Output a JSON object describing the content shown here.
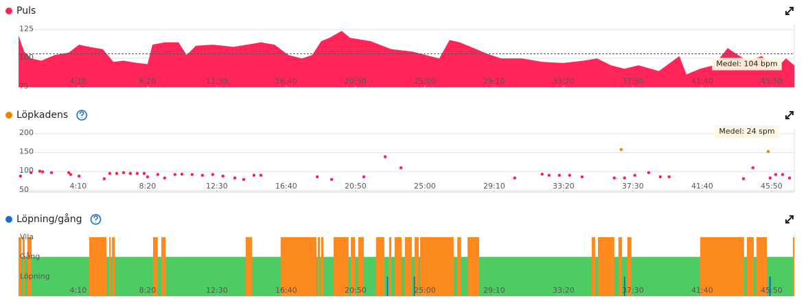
{
  "chart_data": [
    {
      "type": "area",
      "title": "Puls",
      "color": "#ff2558",
      "xlim": [
        35,
        2832
      ],
      "xticks": [
        {
          "value": 250,
          "label": "4:10"
        },
        {
          "value": 500,
          "label": "8:20"
        },
        {
          "value": 750,
          "label": "12:30"
        },
        {
          "value": 1000,
          "label": "16:40"
        },
        {
          "value": 1250,
          "label": "20:50"
        },
        {
          "value": 1500,
          "label": "25:00"
        },
        {
          "value": 1750,
          "label": "29:10"
        },
        {
          "value": 2000,
          "label": "33:20"
        },
        {
          "value": 2250,
          "label": "37:30"
        },
        {
          "value": 2500,
          "label": "41:40"
        },
        {
          "value": 2750,
          "label": "45:50"
        }
      ],
      "ylim": [
        75,
        127
      ],
      "yticks": [
        75,
        100,
        125
      ],
      "grid": true,
      "x": [
        35,
        55,
        80,
        117,
        166,
        216,
        253,
        290,
        339,
        377,
        414,
        463,
        500,
        518,
        562,
        612,
        641,
        674,
        735,
        810,
        859,
        909,
        958,
        1008,
        1057,
        1094,
        1126,
        1156,
        1200,
        1230,
        1305,
        1379,
        1453,
        1503,
        1552,
        1589,
        1626,
        1676,
        1725,
        1775,
        1849,
        1923,
        1998,
        2072,
        2121,
        2171,
        2220,
        2270,
        2344,
        2418,
        2443,
        2493,
        2542,
        2592,
        2629,
        2666,
        2715,
        2765,
        2802,
        2832
      ],
      "series": [
        {
          "color": "#ff2558",
          "values": [
            120,
            106,
            100,
            98,
            103,
            105,
            112,
            110,
            108,
            97,
            98,
            96,
            95,
            112,
            114,
            114,
            103,
            111,
            112,
            110,
            112,
            114,
            112,
            103,
            100,
            103,
            115,
            118,
            124,
            118,
            115,
            108,
            106,
            103,
            100,
            116,
            114,
            109,
            104,
            100,
            100,
            97,
            96,
            98,
            100,
            94,
            91,
            94,
            89,
            102,
            86,
            91,
            94,
            109,
            103,
            98,
            102,
            91,
            100,
            94
          ]
        }
      ],
      "annotation": {
        "text": "Medel: 104 bpm",
        "value": 104
      }
    },
    {
      "type": "scatter",
      "title": "Löpkadens",
      "color": "#f08300",
      "xlim": [
        35,
        2832
      ],
      "xticks": [
        {
          "value": 250,
          "label": "4:10"
        },
        {
          "value": 500,
          "label": "8:20"
        },
        {
          "value": 750,
          "label": "12:30"
        },
        {
          "value": 1000,
          "label": "16:40"
        },
        {
          "value": 1250,
          "label": "20:50"
        },
        {
          "value": 1500,
          "label": "25:00"
        },
        {
          "value": 1750,
          "label": "29:10"
        },
        {
          "value": 2000,
          "label": "33:20"
        },
        {
          "value": 2250,
          "label": "37:30"
        },
        {
          "value": 2500,
          "label": "41:40"
        },
        {
          "value": 2750,
          "label": "45:50"
        }
      ],
      "ylim": [
        46,
        200
      ],
      "yticks": [
        50,
        100,
        150,
        200
      ],
      "grid": true,
      "series": [
        {
          "color": "#ff1f4f",
          "x": [
            42,
            80,
            112,
            122,
            154,
            216,
            223,
            253,
            344,
            364,
            389,
            414,
            438,
            463,
            488,
            500,
            537,
            562,
            599,
            624,
            661,
            698,
            735,
            772,
            815,
            847,
            884,
            909,
            1112,
            1164,
            1280,
            1357,
            1414,
            1824,
            1923,
            1948,
            1985,
            2022,
            2067,
            2183,
            2220,
            2257,
            2307,
            2349,
            2381,
            2649,
            2683,
            2745,
            2765,
            2790,
            2815
          ],
          "values": [
            88,
            97,
            101,
            99,
            97,
            97,
            92,
            88,
            81,
            95,
            95,
            97,
            95,
            95,
            95,
            86,
            92,
            83,
            92,
            93,
            92,
            90,
            92,
            88,
            83,
            79,
            90,
            90,
            86,
            79,
            86,
            139,
            110,
            83,
            93,
            90,
            90,
            90,
            86,
            83,
            83,
            90,
            97,
            86,
            86,
            81,
            110,
            83,
            92,
            92,
            83
          ]
        },
        {
          "color": "#f08300",
          "x": [
            2208,
            2738
          ],
          "values": [
            158,
            153
          ]
        }
      ],
      "annotation": {
        "text": "Medel: 24 spm"
      }
    },
    {
      "type": "timeline",
      "title": "Löpning/gång",
      "color": "#1a6ec7",
      "xlim": [
        35,
        2832
      ],
      "xticks": [
        {
          "value": 250,
          "label": "4:10"
        },
        {
          "value": 500,
          "label": "8:20"
        },
        {
          "value": 750,
          "label": "12:30"
        },
        {
          "value": 1000,
          "label": "16:40"
        },
        {
          "value": 1250,
          "label": "20:50"
        },
        {
          "value": 1500,
          "label": "25:00"
        },
        {
          "value": 1750,
          "label": "29:10"
        },
        {
          "value": 2000,
          "label": "33:20"
        },
        {
          "value": 2250,
          "label": "37:30"
        },
        {
          "value": 2500,
          "label": "41:40"
        },
        {
          "value": 2750,
          "label": "45:50"
        }
      ],
      "categories": [
        "Löpning",
        "Gång",
        "Vila"
      ],
      "series": [
        {
          "color": "#4ecb63",
          "level": 1,
          "intervals": [
            [
              35,
              2832
            ]
          ]
        },
        {
          "color": "#fd8a1e",
          "level": 2,
          "intervals": [
            [
              35,
              45
            ],
            [
              50,
              57
            ],
            [
              67,
              82
            ],
            [
              290,
              352
            ],
            [
              362,
              367
            ],
            [
              372,
              382
            ],
            [
              520,
              537
            ],
            [
              550,
              565
            ],
            [
              854,
              877
            ],
            [
              980,
              1109
            ],
            [
              1114,
              1122
            ],
            [
              1126,
              1134
            ],
            [
              1171,
              1225
            ],
            [
              1233,
              1248
            ],
            [
              1260,
              1280
            ],
            [
              1324,
              1354
            ],
            [
              1371,
              1379
            ],
            [
              1391,
              1416
            ],
            [
              1428,
              1453
            ],
            [
              1463,
              1478
            ],
            [
              1483,
              1604
            ],
            [
              1617,
              1631
            ],
            [
              1654,
              1696
            ],
            [
              2102,
              2114
            ],
            [
              2124,
              2183
            ],
            [
              2198,
              2211
            ],
            [
              2230,
              2245
            ],
            [
              2493,
              2651
            ],
            [
              2661,
              2686
            ],
            [
              2696,
              2733
            ],
            [
              2827,
              2832
            ]
          ]
        },
        {
          "color": "#1a5fc2",
          "level": 0,
          "intervals": [
            [
              1363,
              1367
            ],
            [
              1460,
              1464
            ],
            [
              2218,
              2222
            ],
            [
              2742,
              2747
            ]
          ]
        }
      ]
    }
  ]
}
